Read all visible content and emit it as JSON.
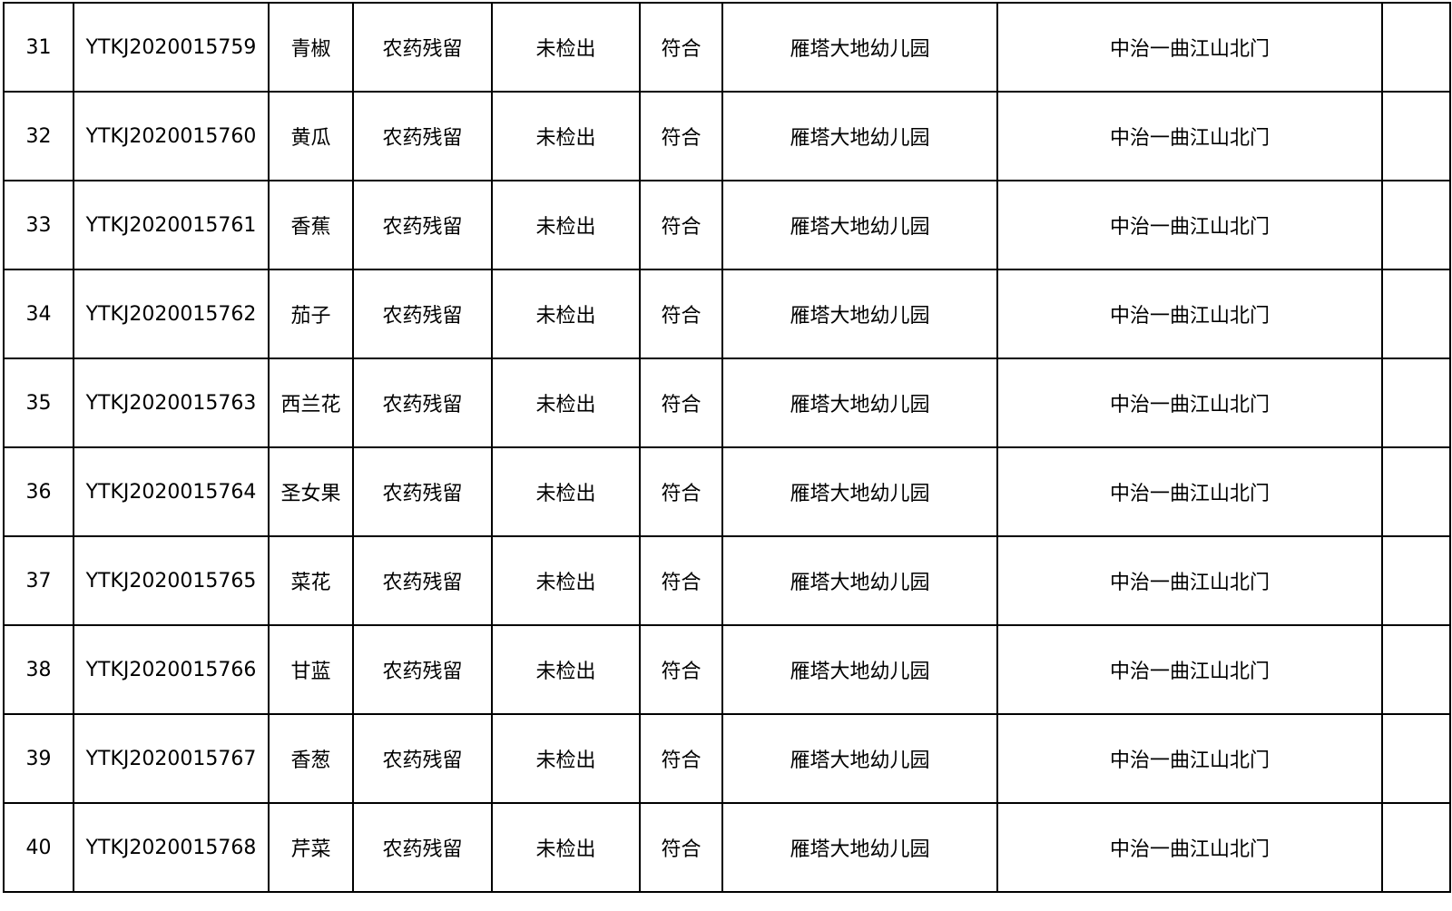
{
  "table": {
    "rows": [
      {
        "no": "31",
        "code": "YTKJ2020015759",
        "name": "青椒",
        "item": "农药残留",
        "result": "未检出",
        "judgement": "符合",
        "unit": "雁塔大地幼儿园",
        "location": "中治一曲江山北门",
        "note": ""
      },
      {
        "no": "32",
        "code": "YTKJ2020015760",
        "name": "黄瓜",
        "item": "农药残留",
        "result": "未检出",
        "judgement": "符合",
        "unit": "雁塔大地幼儿园",
        "location": "中治一曲江山北门",
        "note": ""
      },
      {
        "no": "33",
        "code": "YTKJ2020015761",
        "name": "香蕉",
        "item": "农药残留",
        "result": "未检出",
        "judgement": "符合",
        "unit": "雁塔大地幼儿园",
        "location": "中治一曲江山北门",
        "note": ""
      },
      {
        "no": "34",
        "code": "YTKJ2020015762",
        "name": "茄子",
        "item": "农药残留",
        "result": "未检出",
        "judgement": "符合",
        "unit": "雁塔大地幼儿园",
        "location": "中治一曲江山北门",
        "note": ""
      },
      {
        "no": "35",
        "code": "YTKJ2020015763",
        "name": "西兰花",
        "item": "农药残留",
        "result": "未检出",
        "judgement": "符合",
        "unit": "雁塔大地幼儿园",
        "location": "中治一曲江山北门",
        "note": ""
      },
      {
        "no": "36",
        "code": "YTKJ2020015764",
        "name": "圣女果",
        "item": "农药残留",
        "result": "未检出",
        "judgement": "符合",
        "unit": "雁塔大地幼儿园",
        "location": "中治一曲江山北门",
        "note": ""
      },
      {
        "no": "37",
        "code": "YTKJ2020015765",
        "name": "菜花",
        "item": "农药残留",
        "result": "未检出",
        "judgement": "符合",
        "unit": "雁塔大地幼儿园",
        "location": "中治一曲江山北门",
        "note": ""
      },
      {
        "no": "38",
        "code": "YTKJ2020015766",
        "name": "甘蓝",
        "item": "农药残留",
        "result": "未检出",
        "judgement": "符合",
        "unit": "雁塔大地幼儿园",
        "location": "中治一曲江山北门",
        "note": ""
      },
      {
        "no": "39",
        "code": "YTKJ2020015767",
        "name": "香葱",
        "item": "农药残留",
        "result": "未检出",
        "judgement": "符合",
        "unit": "雁塔大地幼儿园",
        "location": "中治一曲江山北门",
        "note": ""
      },
      {
        "no": "40",
        "code": "YTKJ2020015768",
        "name": "芹菜",
        "item": "农药残留",
        "result": "未检出",
        "judgement": "符合",
        "unit": "雁塔大地幼儿园",
        "location": "中治一曲江山北门",
        "note": ""
      }
    ]
  }
}
